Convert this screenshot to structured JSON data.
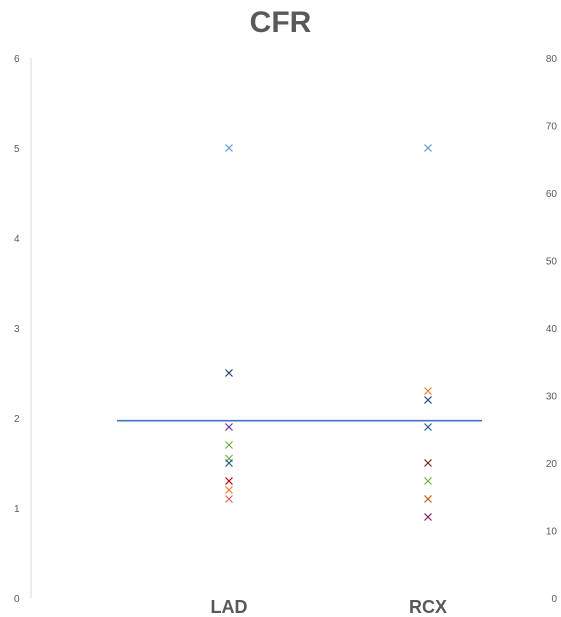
{
  "chart_data": {
    "type": "scatter",
    "title": "CFR",
    "categories": [
      "LAD",
      "RCX"
    ],
    "y_left": {
      "range": [
        0,
        6
      ],
      "ticks": [
        "0",
        "1",
        "2",
        "3",
        "4",
        "5",
        "6"
      ]
    },
    "y_right": {
      "range": [
        0,
        80
      ],
      "ticks": [
        "0",
        "10",
        "20",
        "30",
        "40",
        "50",
        "60",
        "70",
        "80"
      ]
    },
    "reference_line": {
      "y": 1.97,
      "color": "#4472C4"
    },
    "grid": false,
    "legend": "none",
    "series": [
      {
        "category": "LAD",
        "values": [
          5.0,
          2.5,
          1.9,
          1.7,
          1.55,
          1.5,
          1.3,
          1.2,
          1.1
        ],
        "colors": [
          "#5B9BD5",
          "#264478",
          "#7030A0",
          "#70AD47",
          "#70AD47",
          "#255E91",
          "#C00000",
          "#ED7D31",
          "#E0605A"
        ]
      },
      {
        "category": "RCX",
        "values": [
          5.0,
          2.3,
          2.2,
          1.9,
          1.5,
          1.3,
          1.1,
          0.9
        ],
        "colors": [
          "#5B9BD5",
          "#ED7D31",
          "#264478",
          "#255E91",
          "#7F2020",
          "#70AD47",
          "#C55A11",
          "#7F1F5F"
        ]
      }
    ]
  }
}
